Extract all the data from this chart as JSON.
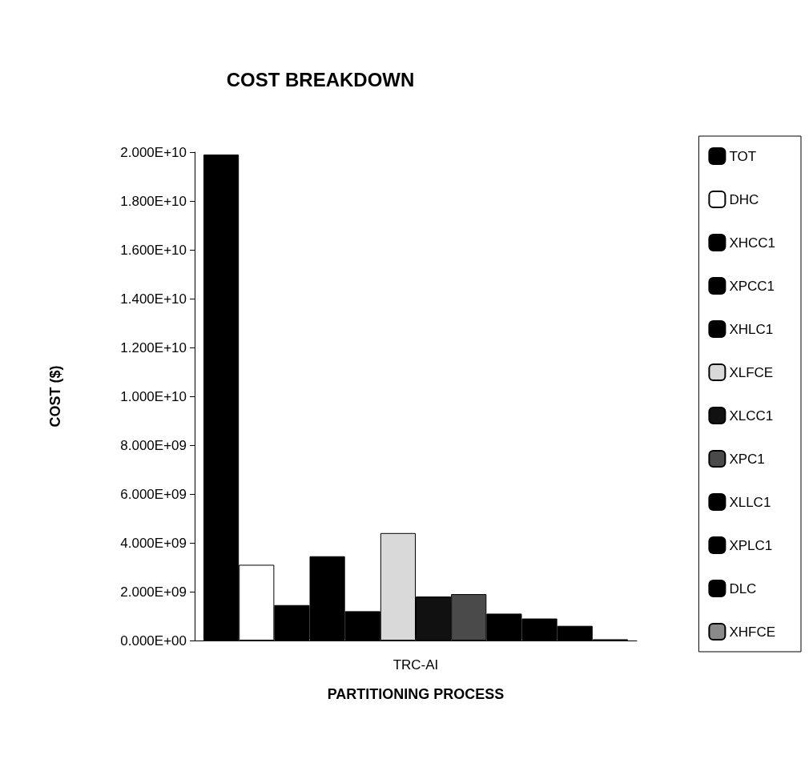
{
  "chart_data": {
    "type": "bar",
    "title": "COST BREAKDOWN",
    "xlabel": "PARTITIONING PROCESS",
    "ylabel": "COST ($)",
    "categories": [
      "TRC-AI"
    ],
    "series": [
      {
        "name": "TOT",
        "color": "#000000",
        "values": [
          19900000000.0
        ]
      },
      {
        "name": "DHC",
        "color": "#ffffff",
        "values": [
          3100000000.0
        ]
      },
      {
        "name": "XHCC1",
        "color": "#000000",
        "values": [
          1450000000.0
        ]
      },
      {
        "name": "XPCC1",
        "color": "#000000",
        "values": [
          3450000000.0
        ]
      },
      {
        "name": "XHLC1",
        "color": "#000000",
        "values": [
          1200000000.0
        ]
      },
      {
        "name": "XLFCE",
        "color": "#d9d9d9",
        "values": [
          4400000000.0
        ]
      },
      {
        "name": "XLCC1",
        "color": "#111111",
        "values": [
          1800000000.0
        ]
      },
      {
        "name": "XPC1",
        "color": "#4a4a4a",
        "values": [
          1900000000.0
        ]
      },
      {
        "name": "XLLC1",
        "color": "#000000",
        "values": [
          1100000000.0
        ]
      },
      {
        "name": "XPLC1",
        "color": "#000000",
        "values": [
          900000000.0
        ]
      },
      {
        "name": "DLC",
        "color": "#000000",
        "values": [
          600000000.0
        ]
      },
      {
        "name": "XHFCE",
        "color": "#8a8a8a",
        "values": [
          50000000.0
        ]
      }
    ],
    "ylim": [
      0,
      20000000000.0
    ],
    "yticks": [
      {
        "value": 0,
        "label": "0.000E+00"
      },
      {
        "value": 2000000000.0,
        "label": "2.000E+09"
      },
      {
        "value": 4000000000.0,
        "label": "4.000E+09"
      },
      {
        "value": 6000000000.0,
        "label": "6.000E+09"
      },
      {
        "value": 8000000000.0,
        "label": "8.000E+09"
      },
      {
        "value": 10000000000.0,
        "label": "1.000E+10"
      },
      {
        "value": 12000000000.0,
        "label": "1.200E+10"
      },
      {
        "value": 14000000000.0,
        "label": "1.400E+10"
      },
      {
        "value": 16000000000.0,
        "label": "1.600E+10"
      },
      {
        "value": 18000000000.0,
        "label": "1.800E+10"
      },
      {
        "value": 20000000000.0,
        "label": "2.000E+10"
      }
    ],
    "grid": false,
    "legend": "right"
  }
}
